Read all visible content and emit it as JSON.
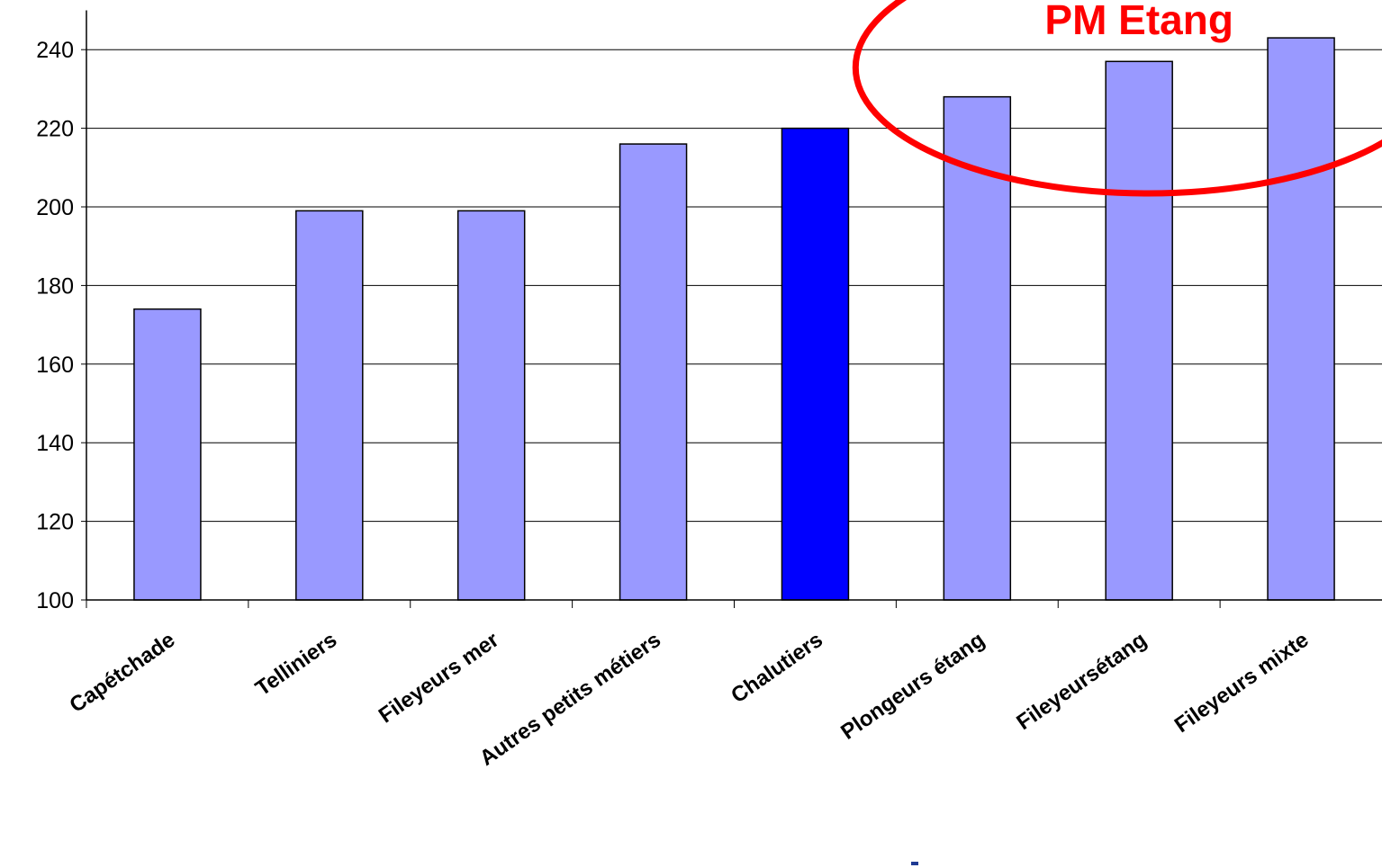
{
  "chart_data": {
    "type": "bar",
    "categories": [
      "Capétchade",
      "Telliniers",
      "Fileyeurs mer",
      "Autres petits métiers",
      "Chalutiers",
      "Plongeurs étang",
      "Fileyeursétang",
      "Fileyeurs mixte"
    ],
    "values": [
      174,
      199,
      199,
      216,
      220,
      228,
      237,
      243
    ],
    "highlight_category": "Chalutiers",
    "colors": {
      "bar": "#9999ff",
      "highlight": "#0000ff",
      "annotation": "#ff0000"
    },
    "ylim": [
      100,
      250
    ],
    "yticks": [
      100,
      120,
      140,
      160,
      180,
      200,
      220,
      240
    ],
    "grid": true,
    "annotation": {
      "text": "PM Etang",
      "encircles": [
        "Plongeurs étang",
        "Fileyeursétang",
        "Fileyeurs mixte"
      ]
    }
  }
}
